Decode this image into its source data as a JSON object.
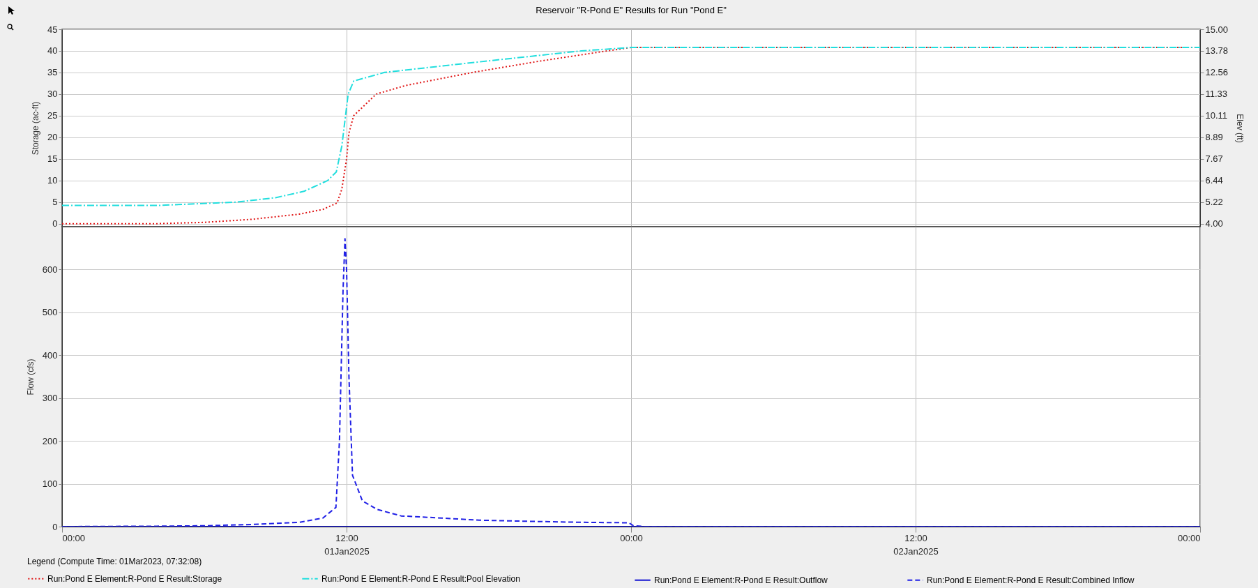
{
  "chart_data": [
    {
      "type": "line",
      "title": "Reservoir \"R-Pond E\" Results for Run \"Pond E\"",
      "ylabel": "Storage (ac-ft)",
      "y2label": "Elev (ft)",
      "legend_title": "Legend (Compute Time: 01Mar2023, 07:32:08)",
      "legend": "bottom",
      "grid": true,
      "tick_labels": "y",
      "xlim": [
        "2025-01-01T00:00",
        "2025-01-03T00:00"
      ],
      "xticks": [
        {
          "value": "2025-01-01T00:00",
          "label": null
        },
        {
          "value": "2025-01-01T12:00",
          "label": null
        },
        {
          "value": "2025-01-02T00:00",
          "label": null
        },
        {
          "value": "2025-01-02T12:00",
          "label": null
        },
        {
          "value": "2025-01-03T00:00",
          "label": null
        }
      ],
      "ylim": [
        -0.7,
        45
      ],
      "yticks": [
        0,
        5,
        10,
        15,
        20,
        25,
        30,
        35,
        40,
        45
      ],
      "y2lim": [
        3.83,
        15
      ],
      "y2ticks": [
        {
          "value": 4,
          "label": "4.00"
        },
        5.22,
        6.44,
        7.67,
        8.89,
        10.11,
        11.33,
        12.56,
        13.78,
        {
          "value": 15,
          "label": "15.00"
        }
      ],
      "series": [
        {
          "name": "Run:Pond E Element:R-Pond E Result:Storage",
          "color": "#e01414",
          "line_style": "dotted",
          "x": [
            "2025-01-01T00:00",
            "2025-01-01T04:00",
            "2025-01-01T06:00",
            "2025-01-01T08:00",
            "2025-01-01T10:00",
            "2025-01-01T11:00",
            "2025-01-01T11:36",
            "2025-01-01T11:48",
            "2025-01-01T12:00",
            "2025-01-01T12:06",
            "2025-01-01T12:18",
            "2025-01-01T13:15",
            "2025-01-01T14:30",
            "2025-01-01T17:18",
            "2025-01-01T20:00",
            "2025-01-01T23:00",
            "2025-01-02T00:00",
            "2025-01-03T00:00"
          ],
          "values": [
            0,
            0,
            0.3,
            1,
            2.2,
            3.3,
            4.8,
            8,
            15,
            21,
            25,
            30,
            32,
            35,
            37.5,
            40,
            40.8,
            40.8
          ]
        },
        {
          "name": "Run:Pond E Element:R-Pond E Result:Pool Elevation",
          "color": "#22dede",
          "line_style": "dashdot",
          "axis": "y2",
          "x": [
            "2025-01-01T00:00",
            "2025-01-01T04:00",
            "2025-01-01T07:21",
            "2025-01-01T09:00",
            "2025-01-01T10:12",
            "2025-01-01T11:12",
            "2025-01-01T11:34",
            "2025-01-01T11:48",
            "2025-01-01T12:00",
            "2025-01-01T12:04",
            "2025-01-01T12:18",
            "2025-01-01T13:36",
            "2025-01-01T16:48",
            "2025-01-01T21:54",
            "2025-01-02T00:00",
            "2025-01-03T00:00"
          ],
          "values": [
            5.03,
            5.03,
            5.22,
            5.47,
            5.83,
            6.44,
            6.93,
            8.4,
            10.6,
            11.33,
            12.07,
            12.56,
            13.04,
            13.78,
            13.97,
            13.97
          ]
        }
      ]
    },
    {
      "type": "line",
      "ylabel": "Flow (cfs)",
      "legend": "bottom",
      "grid": true,
      "xlim": [
        "2025-01-01T00:00",
        "2025-01-03T00:00"
      ],
      "xticks": [
        {
          "value": "2025-01-01T00:00",
          "label": "00:00"
        },
        {
          "value": "2025-01-01T12:00",
          "label": "12:00\n01Jan2025"
        },
        {
          "value": "2025-01-02T00:00",
          "label": "00:00"
        },
        {
          "value": "2025-01-02T12:00",
          "label": "12:00\n02Jan2025"
        },
        {
          "value": "2025-01-03T00:00",
          "label": "00:00"
        }
      ],
      "ylim": [
        0,
        700
      ],
      "yticks": [
        0,
        100,
        200,
        300,
        400,
        500,
        600
      ],
      "series": [
        {
          "name": "Run:Pond E Element:R-Pond E Result:Outflow",
          "color": "#1414d2",
          "line_style": "solid",
          "x": [
            "2025-01-01T00:00",
            "2025-01-03T00:00"
          ],
          "values": [
            0,
            0
          ]
        },
        {
          "name": "Run:Pond E Element:R-Pond E Result:Combined Inflow",
          "color": "#2020e6",
          "line_style": "dashed",
          "x": [
            "2025-01-01T00:00",
            "2025-01-01T04:00",
            "2025-01-01T06:00",
            "2025-01-01T08:00",
            "2025-01-01T10:00",
            "2025-01-01T11:00",
            "2025-01-01T11:33",
            "2025-01-01T11:42",
            "2025-01-01T11:51",
            "2025-01-01T11:56",
            "2025-01-01T12:00",
            "2025-01-01T12:06",
            "2025-01-01T12:15",
            "2025-01-01T12:40",
            "2025-01-01T13:18",
            "2025-01-01T14:18",
            "2025-01-01T16:00",
            "2025-01-01T17:36",
            "2025-01-01T20:00",
            "2025-01-01T22:00",
            "2025-01-01T23:54",
            "2025-01-02T00:06",
            "2025-01-02T00:36",
            "2025-01-03T00:00"
          ],
          "values": [
            0,
            1,
            2,
            5,
            10,
            20,
            45,
            200,
            550,
            672,
            600,
            350,
            120,
            60,
            40,
            25,
            20,
            15,
            12,
            10,
            9,
            2,
            0,
            0
          ]
        }
      ]
    }
  ]
}
